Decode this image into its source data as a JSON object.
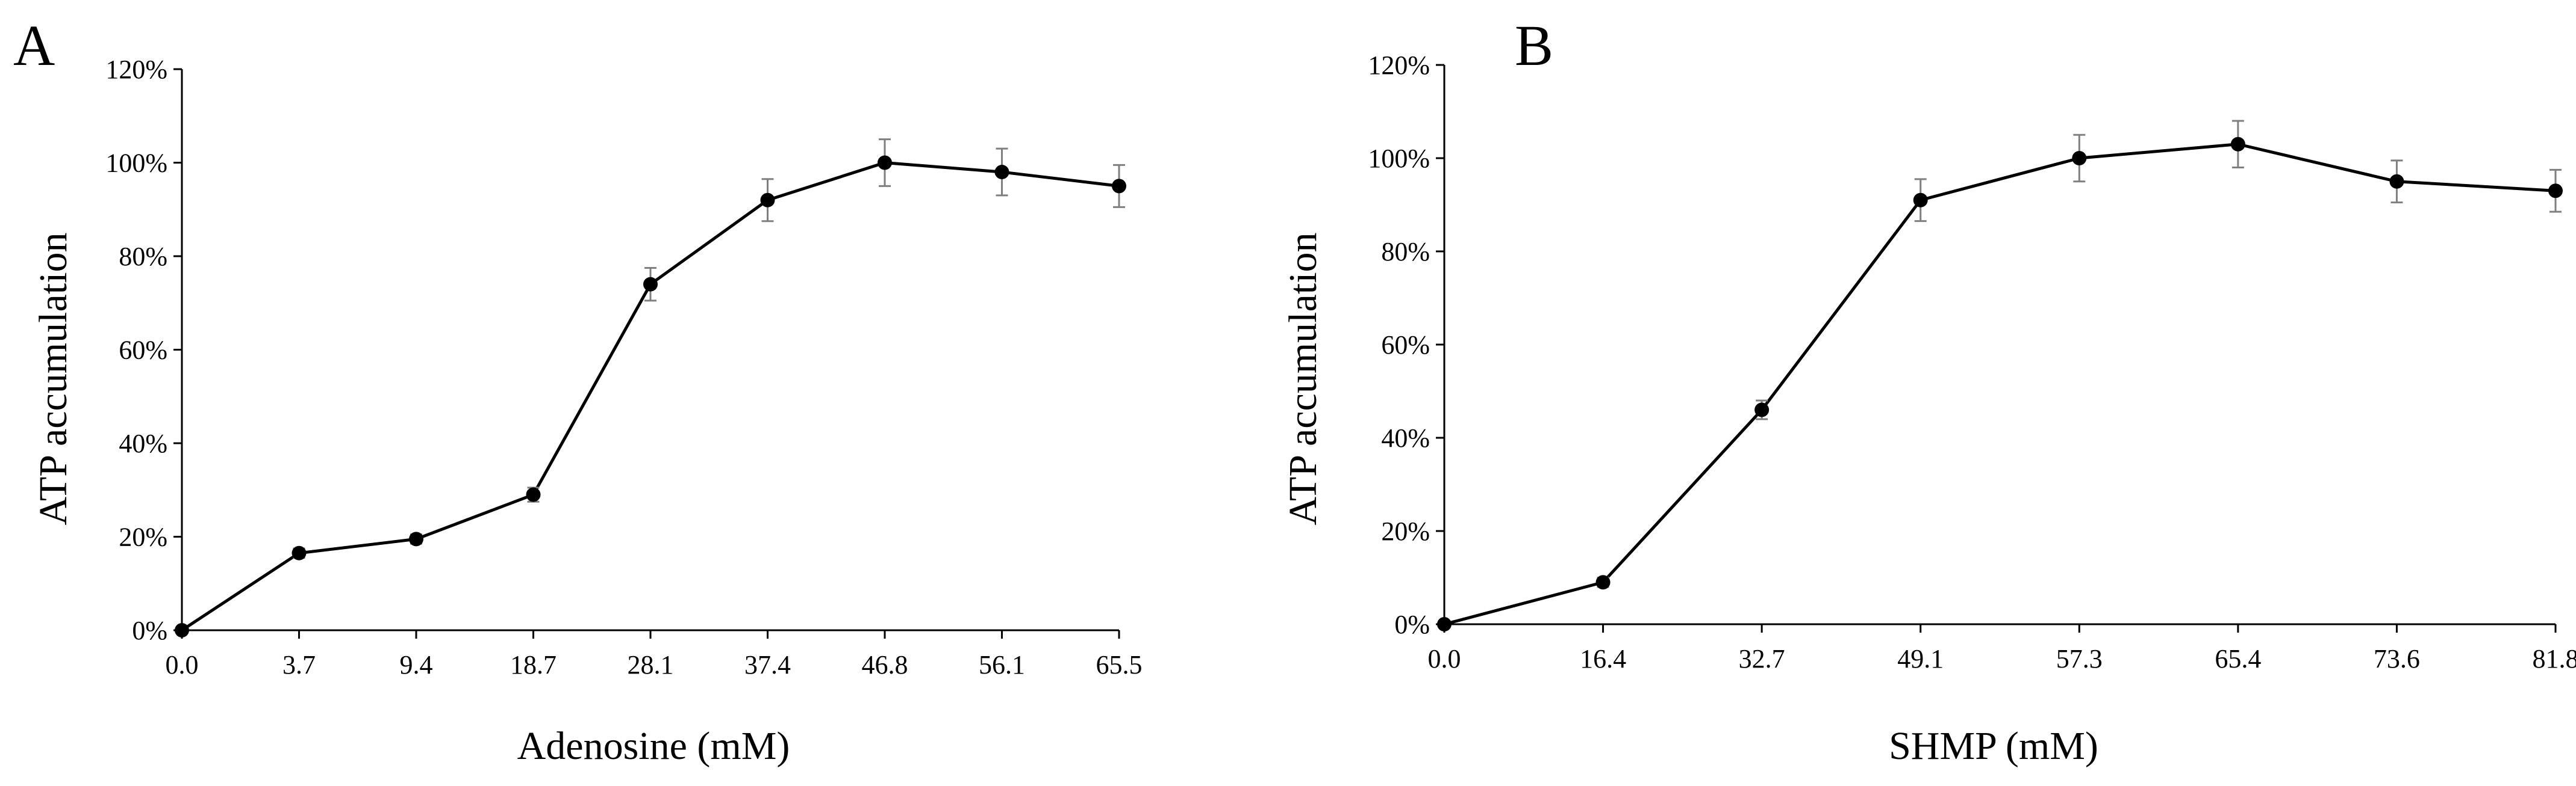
{
  "chart_data": [
    {
      "type": "line",
      "panel_label": "A",
      "title": "",
      "xlabel": "Adenosine (mM)",
      "ylabel": "ATP accumulation",
      "categories": [
        "0.0",
        "3.7",
        "9.4",
        "18.7",
        "28.1",
        "37.4",
        "46.8",
        "56.1",
        "65.5"
      ],
      "values": [
        0,
        16.5,
        19.5,
        29,
        74,
        92,
        100,
        98,
        95
      ],
      "errors": [
        0,
        1,
        1,
        1.5,
        3.5,
        4.5,
        5,
        5,
        4.5
      ],
      "y_ticks": [
        0,
        20,
        40,
        60,
        80,
        100,
        120
      ],
      "y_tick_labels": [
        "0%",
        "20%",
        "40%",
        "60%",
        "80%",
        "100%",
        "120%"
      ],
      "ylim": [
        0,
        120
      ],
      "grid": false,
      "colors": {
        "line": "#000000",
        "marker": "#000000",
        "error_bar": "#7f7f7f",
        "axis": "#000000"
      }
    },
    {
      "type": "line",
      "panel_label": "B",
      "title": "",
      "xlabel": "SHMP (mM)",
      "ylabel": "ATP accumulation",
      "categories": [
        "0.0",
        "16.4",
        "32.7",
        "49.1",
        "57.3",
        "65.4",
        "73.6",
        "81.8"
      ],
      "values": [
        0,
        9,
        46,
        91,
        100,
        103,
        95,
        93
      ],
      "errors": [
        0,
        1,
        2,
        4.5,
        5,
        5,
        4.5,
        4.5
      ],
      "y_ticks": [
        0,
        20,
        40,
        60,
        80,
        100,
        120
      ],
      "y_tick_labels": [
        "0%",
        "20%",
        "40%",
        "60%",
        "80%",
        "100%",
        "120%"
      ],
      "ylim": [
        0,
        120
      ],
      "grid": false,
      "colors": {
        "line": "#000000",
        "marker": "#000000",
        "error_bar": "#7f7f7f",
        "axis": "#000000"
      }
    }
  ]
}
